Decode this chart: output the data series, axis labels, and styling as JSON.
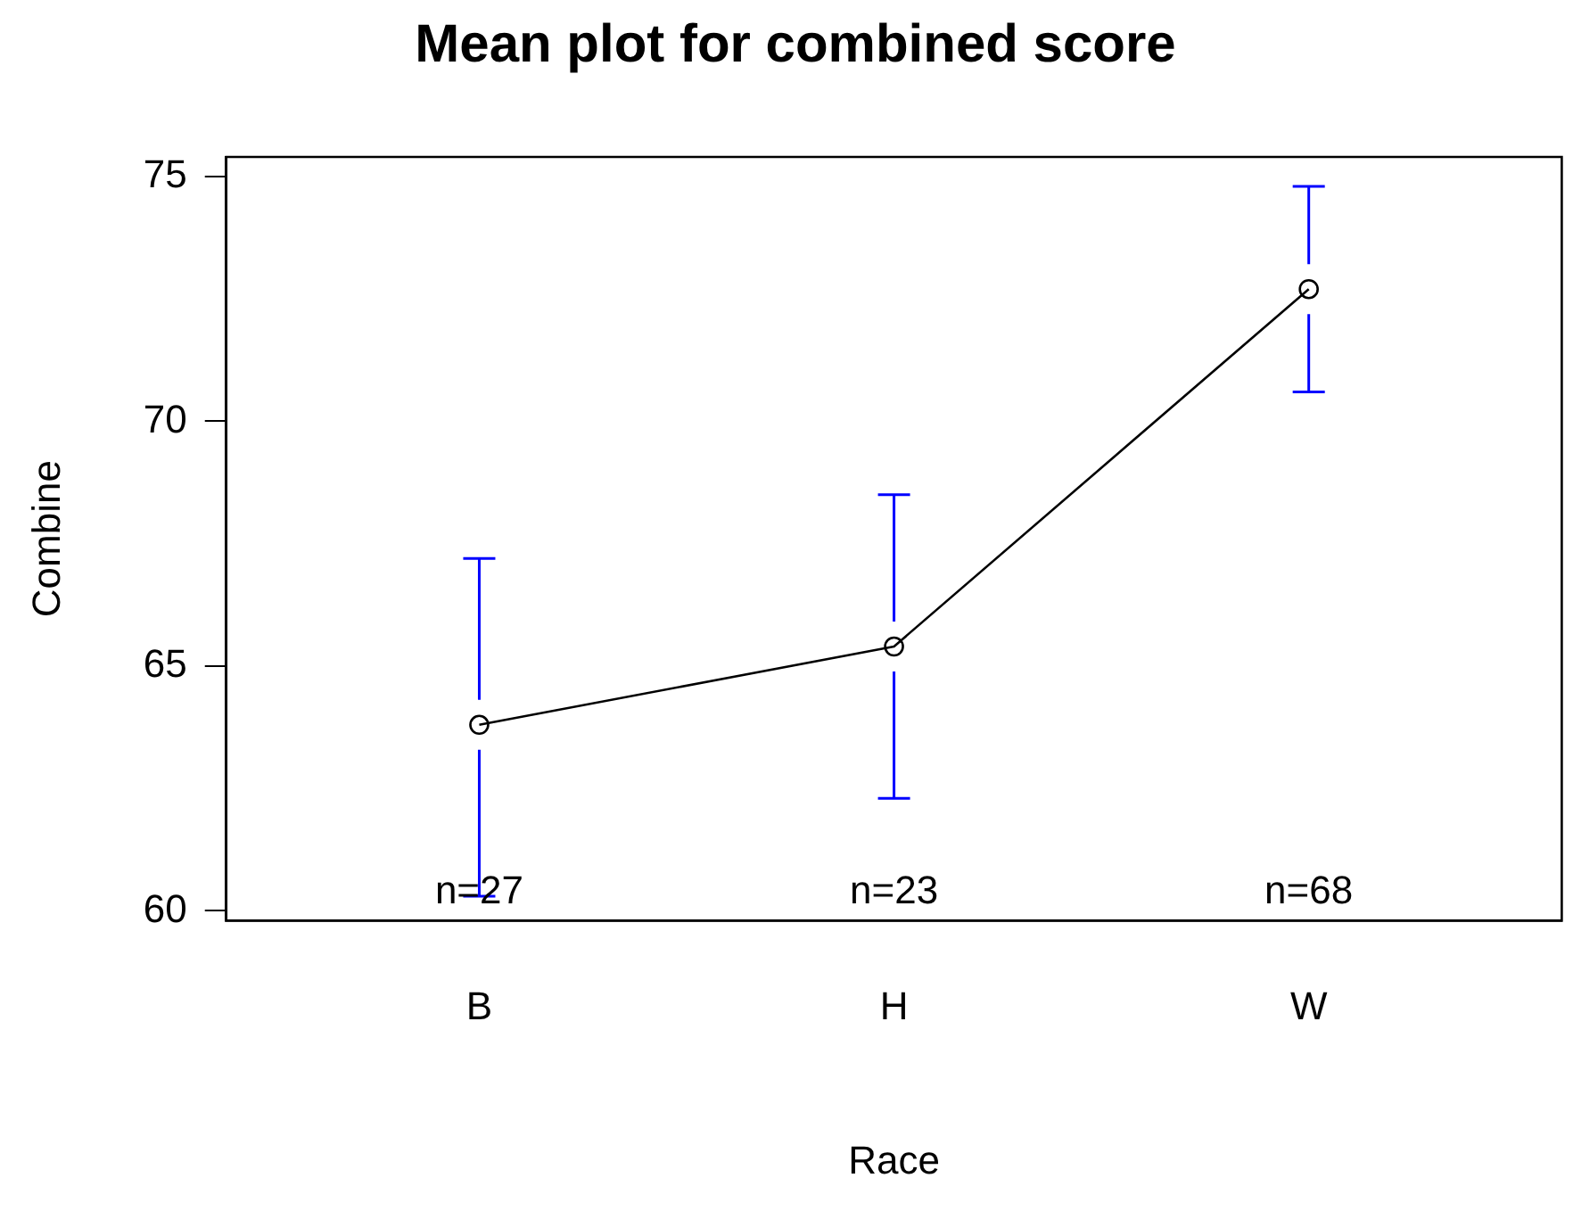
{
  "chart_data": {
    "type": "line",
    "title": "Mean plot for combined score",
    "xlabel": "Race",
    "ylabel": "Combine",
    "categories": [
      "B",
      "H",
      "W"
    ],
    "series": [
      {
        "color": "#000000",
        "values": [
          63.8,
          65.4,
          72.7
        ],
        "errors": [
          [
            60.3,
            67.2
          ],
          [
            62.3,
            68.5
          ],
          [
            70.6,
            74.8
          ]
        ]
      }
    ],
    "ylim": [
      59.8,
      75.4
    ],
    "yticks": [
      60,
      65,
      70,
      75
    ],
    "grid": false,
    "legend": false,
    "marker": "circle",
    "line_style": "solid",
    "annotations": [
      "n=27",
      "n=23",
      "n=68"
    ]
  }
}
